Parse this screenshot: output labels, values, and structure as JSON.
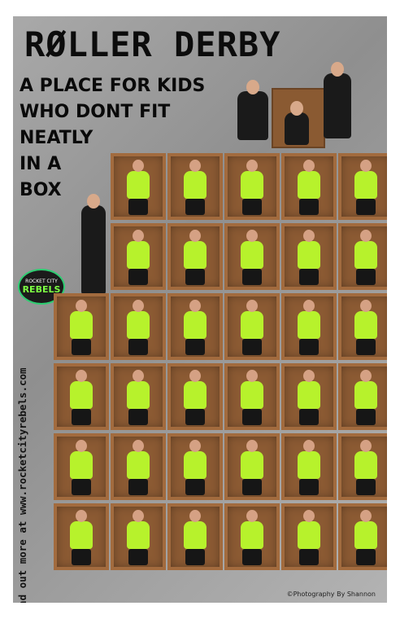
{
  "title": "RØLLER DERBY",
  "tagline": [
    "A PLACE FOR KIDS",
    "WHO DONT FIT",
    "NEATLY",
    "IN A",
    "BOX"
  ],
  "logo": {
    "top_text": "ROCKET CITY",
    "main_text": "REBELS"
  },
  "url": "Find out more at www.rocketcityrebels.com",
  "credit": "©Photography By Shannon",
  "colors": {
    "background": "#a0a0a0",
    "box": "#8b5a33",
    "jersey": "#b7f22c",
    "text": "#0c0c0c"
  }
}
